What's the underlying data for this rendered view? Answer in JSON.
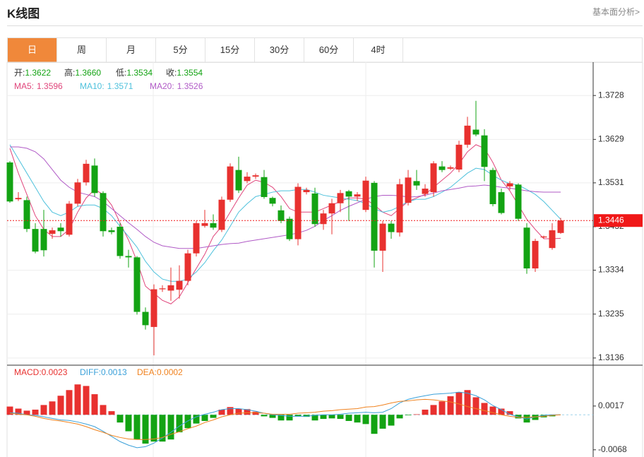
{
  "header": {
    "title": "K线图",
    "link": "基本面分析>"
  },
  "tabs": [
    {
      "label": "日",
      "active": true
    },
    {
      "label": "周"
    },
    {
      "label": "月"
    },
    {
      "label": "5分"
    },
    {
      "label": "15分"
    },
    {
      "label": "30分"
    },
    {
      "label": "60分"
    },
    {
      "label": "4时"
    }
  ],
  "chart_data": [
    {
      "type": "candlestick",
      "readout": [
        {
          "label": "开:",
          "value": "1.3622"
        },
        {
          "label": "高:",
          "value": "1.3660"
        },
        {
          "label": "低:",
          "value": "1.3534"
        },
        {
          "label": "收:",
          "value": "1.3554"
        }
      ],
      "readout_color": "#13a313",
      "up_color": "#e8312f",
      "down_color": "#13a313",
      "open": [
        1.3577,
        1.3494,
        1.3492,
        1.3427,
        1.3427,
        1.3416,
        1.343,
        1.3414,
        1.3484,
        1.3532,
        1.357,
        1.3508,
        1.3424,
        1.3432,
        1.3366,
        1.3363,
        1.324,
        1.3206,
        1.3291,
        1.3288,
        1.329,
        1.331,
        1.3372,
        1.3434,
        1.344,
        1.3425,
        1.3493,
        1.356,
        1.3535,
        1.3545,
        1.3544,
        1.3497,
        1.3469,
        1.345,
        1.3404,
        1.351,
        1.3507,
        1.3438,
        1.3462,
        1.3485,
        1.3512,
        1.35,
        1.347,
        1.3531,
        1.3378,
        1.3439,
        1.3419,
        1.3486,
        1.3535,
        1.3506,
        1.351,
        1.3568,
        1.3563,
        1.3561,
        1.3617,
        1.3651,
        1.3638,
        1.356,
        1.351,
        1.3523,
        1.3527,
        1.343,
        1.3338,
        1.3408,
        1.3384,
        1.3418
      ],
      "high": [
        1.358,
        1.351,
        1.35,
        1.344,
        1.347,
        1.343,
        1.344,
        1.349,
        1.354,
        1.3583,
        1.3586,
        1.3512,
        1.343,
        1.344,
        1.338,
        1.3366,
        1.325,
        1.3302,
        1.33,
        1.334,
        1.3345,
        1.338,
        1.3445,
        1.347,
        1.346,
        1.35,
        1.3575,
        1.359,
        1.3555,
        1.3552,
        1.356,
        1.35,
        1.348,
        1.3455,
        1.353,
        1.352,
        1.352,
        1.347,
        1.3495,
        1.3515,
        1.3515,
        1.351,
        1.3545,
        1.3535,
        1.3445,
        1.3445,
        1.354,
        1.356,
        1.356,
        1.3528,
        1.358,
        1.358,
        1.357,
        1.3626,
        1.368,
        1.3716,
        1.3652,
        1.3565,
        1.3518,
        1.3535,
        1.353,
        1.344,
        1.3405,
        1.3412,
        1.344,
        1.3452
      ],
      "low": [
        1.3486,
        1.349,
        1.342,
        1.3372,
        1.3365,
        1.3405,
        1.341,
        1.341,
        1.3478,
        1.3525,
        1.35,
        1.341,
        1.3415,
        1.336,
        1.334,
        1.3234,
        1.32,
        1.3142,
        1.3285,
        1.3265,
        1.327,
        1.33,
        1.3365,
        1.343,
        1.3425,
        1.342,
        1.3488,
        1.3508,
        1.353,
        1.354,
        1.3495,
        1.3478,
        1.344,
        1.34,
        1.339,
        1.3505,
        1.3432,
        1.3425,
        1.3415,
        1.3465,
        1.3445,
        1.349,
        1.3465,
        1.334,
        1.333,
        1.3405,
        1.341,
        1.348,
        1.3515,
        1.35,
        1.35,
        1.3555,
        1.356,
        1.3555,
        1.361,
        1.3636,
        1.3535,
        1.3478,
        1.346,
        1.3515,
        1.3445,
        1.3326,
        1.333,
        1.3405,
        1.338,
        1.3416
      ],
      "close": [
        1.3489,
        1.3497,
        1.3427,
        1.3376,
        1.3379,
        1.3424,
        1.3422,
        1.3484,
        1.3532,
        1.3574,
        1.3508,
        1.3422,
        1.342,
        1.3366,
        1.3363,
        1.324,
        1.321,
        1.3291,
        1.3293,
        1.33,
        1.331,
        1.3372,
        1.344,
        1.344,
        1.343,
        1.3493,
        1.3568,
        1.3514,
        1.3545,
        1.3548,
        1.3499,
        1.3484,
        1.3445,
        1.3404,
        1.3522,
        1.3515,
        1.3438,
        1.3462,
        1.3485,
        1.3508,
        1.35,
        1.3505,
        1.3536,
        1.3378,
        1.3439,
        1.342,
        1.3528,
        1.3543,
        1.3525,
        1.3518,
        1.3575,
        1.356,
        1.3566,
        1.3617,
        1.366,
        1.364,
        1.3567,
        1.3483,
        1.3463,
        1.353,
        1.345,
        1.3338,
        1.34,
        1.341,
        1.3424,
        1.3446
      ],
      "series": [
        {
          "name": "MA5:",
          "readout": "1.3596",
          "color": "#e0457b",
          "values": [
            1.3609,
            1.3553,
            1.3505,
            1.3457,
            1.3426,
            1.341,
            1.341,
            1.3426,
            1.3465,
            1.3497,
            1.3516,
            1.3505,
            1.3481,
            1.3441,
            1.3402,
            1.3354,
            1.3298,
            1.3282,
            1.3266,
            1.3258,
            1.3274,
            1.3306,
            1.3338,
            1.337,
            1.341,
            1.3433,
            1.3465,
            1.3497,
            1.3526,
            1.3537,
            1.3532,
            1.3521,
            1.35,
            1.3473,
            1.3465,
            1.3465,
            1.3465,
            1.3473,
            1.3481,
            1.3489,
            1.3497,
            1.3497,
            1.3494,
            1.3481,
            1.3465,
            1.3457,
            1.3473,
            1.3489,
            1.3497,
            1.3505,
            1.3521,
            1.3537,
            1.3553,
            1.3574,
            1.3601,
            1.3617,
            1.3609,
            1.3577,
            1.3537,
            1.3513,
            1.3481,
            1.3449,
            1.3426,
            1.3405,
            1.3405,
            1.3406
          ]
        },
        {
          "name": "MA10:",
          "readout": "1.3571",
          "color": "#4ec1dc",
          "values": [
            1.3617,
            1.3585,
            1.3553,
            1.3521,
            1.3489,
            1.3465,
            1.3457,
            1.3465,
            1.3478,
            1.3481,
            1.3481,
            1.3473,
            1.3457,
            1.3433,
            1.341,
            1.3386,
            1.3354,
            1.333,
            1.3314,
            1.3309,
            1.3309,
            1.3314,
            1.333,
            1.3351,
            1.3378,
            1.3402,
            1.3433,
            1.3465,
            1.3484,
            1.35,
            1.3505,
            1.351,
            1.3513,
            1.3513,
            1.3516,
            1.3516,
            1.351,
            1.3503,
            1.35,
            1.3497,
            1.3494,
            1.3491,
            1.3484,
            1.3473,
            1.3465,
            1.3469,
            1.3478,
            1.3489,
            1.3494,
            1.3494,
            1.35,
            1.351,
            1.3521,
            1.3537,
            1.3553,
            1.3564,
            1.3561,
            1.3548,
            1.3537,
            1.3529,
            1.3526,
            1.3516,
            1.3505,
            1.3489,
            1.3469,
            1.3449
          ]
        },
        {
          "name": "MA20:",
          "readout": "1.3526",
          "color": "#b05ac6",
          "values": [
            1.3612,
            1.3612,
            1.3609,
            1.3601,
            1.3585,
            1.3561,
            1.3537,
            1.3521,
            1.351,
            1.3505,
            1.35,
            1.3489,
            1.3473,
            1.3457,
            1.3441,
            1.3426,
            1.341,
            1.3397,
            1.3389,
            1.3386,
            1.3383,
            1.3383,
            1.3383,
            1.3386,
            1.3389,
            1.3392,
            1.3394,
            1.3395,
            1.3399,
            1.3402,
            1.3405,
            1.3408,
            1.3411,
            1.3414,
            1.3418,
            1.3424,
            1.3433,
            1.3446,
            1.3457,
            1.3469,
            1.3478,
            1.3486,
            1.3494,
            1.35,
            1.3503,
            1.3503,
            1.3502,
            1.3499,
            1.35,
            1.3503,
            1.3508,
            1.3513,
            1.3516,
            1.3519,
            1.3523,
            1.3524,
            1.3526,
            1.3524,
            1.3521,
            1.3519,
            1.3516,
            1.3513,
            1.3511,
            1.351,
            1.351,
            1.351
          ]
        }
      ],
      "ylim": [
        1.3123,
        1.38
      ],
      "yticks": [
        1.3728,
        1.3629,
        1.3531,
        1.3432,
        1.3334,
        1.3235,
        1.3136
      ],
      "grid": true,
      "current_price": 1.3446,
      "current_price_color": "#f01818"
    },
    {
      "type": "macd",
      "series": [
        {
          "name": "MACD:",
          "readout": "0.0023",
          "type": "bar",
          "color": "#e8312f",
          "down_color": "#13a313",
          "values": [
            0.0016,
            0.0012,
            0.0008,
            0.001,
            0.0019,
            0.0026,
            0.0037,
            0.0048,
            0.0059,
            0.0056,
            0.004,
            0.0019,
            0.0007,
            -0.0015,
            -0.0032,
            -0.0048,
            -0.0056,
            -0.0052,
            -0.0052,
            -0.0048,
            -0.0034,
            -0.0026,
            -0.0017,
            -0.0012,
            -0.0006,
            0.001,
            0.0015,
            0.0012,
            0.0011,
            0.0006,
            -0.0003,
            -0.0006,
            -0.0011,
            -0.0011,
            -0.0003,
            -0.0004,
            -0.0011,
            -0.0008,
            -0.0007,
            -0.0008,
            -0.0012,
            -0.0015,
            -0.0018,
            -0.0037,
            -0.0027,
            -0.0021,
            -0.0007,
            -0.0001,
            0.0001,
            0.001,
            0.0019,
            0.0026,
            0.0036,
            0.0044,
            0.0048,
            0.0034,
            0.0023,
            0.0016,
            0.0012,
            0.0007,
            -0.0007,
            -0.0015,
            -0.001,
            -0.0005,
            -0.0003,
            0
          ]
        },
        {
          "name": "DIFF:",
          "readout": "0.0013",
          "type": "line",
          "color": "#3aa0d9",
          "values": [
            0.0004,
            0.0003,
            0,
            -0.0001,
            -0.0004,
            -0.0007,
            -0.001,
            -0.0011,
            -0.0014,
            -0.0018,
            -0.0023,
            -0.0032,
            -0.0042,
            -0.0052,
            -0.0059,
            -0.0064,
            -0.0062,
            -0.0055,
            -0.0045,
            -0.0034,
            -0.0022,
            -0.0012,
            -0.0004,
            0.0001,
            0.0005,
            0.001,
            0.0012,
            0.0012,
            0.001,
            0.0007,
            0.0003,
            0,
            -0.0001,
            -0.0003,
            -0.0003,
            -0.0003,
            -0.0001,
            0,
            0,
            0.0001,
            0.0003,
            0.0004,
            0.0005,
            0.0004,
            0.0005,
            0.0012,
            0.0023,
            0.003,
            0.0034,
            0.0037,
            0.004,
            0.0041,
            0.0042,
            0.0044,
            0.0042,
            0.0037,
            0.0029,
            0.0018,
            0.001,
            0.0001,
            -0.0004,
            -0.0008,
            -0.0004,
            -0.0001,
            0,
            0
          ]
        },
        {
          "name": "DEA:",
          "readout": "0.0002",
          "type": "line",
          "color": "#f0821e",
          "values": [
            0.0003,
            0.0001,
            0,
            -0.0003,
            -0.0007,
            -0.001,
            -0.0012,
            -0.0015,
            -0.0018,
            -0.0023,
            -0.0029,
            -0.0034,
            -0.004,
            -0.0044,
            -0.0047,
            -0.0048,
            -0.0048,
            -0.0047,
            -0.0044,
            -0.0038,
            -0.0033,
            -0.0027,
            -0.0022,
            -0.0015,
            -0.001,
            -0.0004,
            0,
            0.0003,
            0.0004,
            0.0004,
            0.0003,
            0.0001,
            0.0001,
            0.0001,
            0.0003,
            0.0004,
            0.0005,
            0.0007,
            0.0008,
            0.001,
            0.0011,
            0.0012,
            0.0015,
            0.0016,
            0.0019,
            0.0023,
            0.0026,
            0.0027,
            0.0029,
            0.003,
            0.0029,
            0.0027,
            0.0025,
            0.0021,
            0.0016,
            0.0012,
            0.0008,
            0.0004,
            0,
            -0.0003,
            -0.0005,
            -0.0005,
            -0.0004,
            -0.0003,
            -0.0001,
            0
          ]
        }
      ],
      "ylim": [
        -0.0082,
        0.0095
      ],
      "yticks": [
        0.0017,
        -0.0068
      ],
      "grid": false
    }
  ]
}
